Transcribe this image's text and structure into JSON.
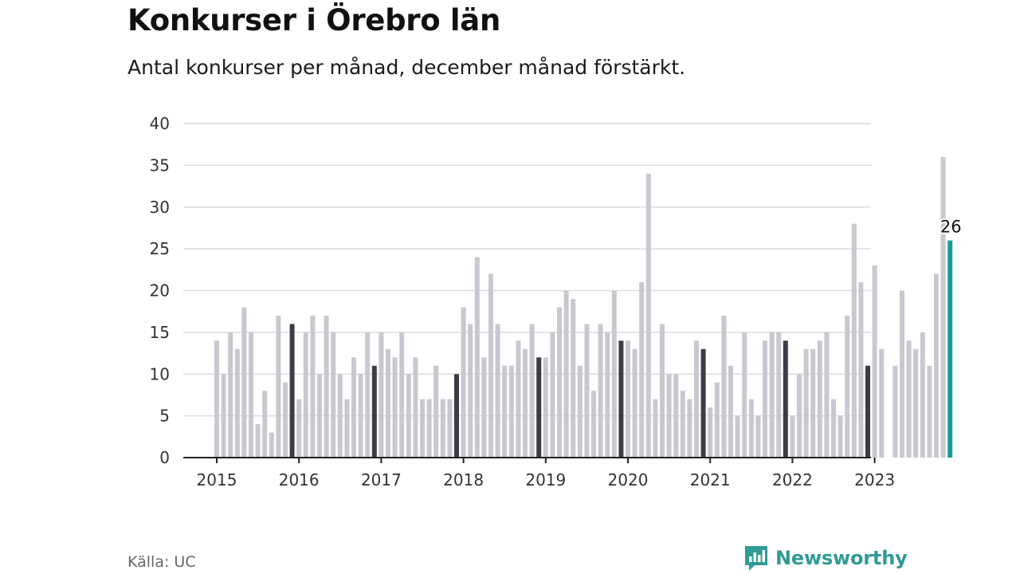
{
  "title": "Konkurser i Örebro län",
  "subtitle": "Antal konkurser per månad, december månad förstärkt.",
  "source": "Källa: UC",
  "brand": {
    "name": "Newsworthy",
    "icon": "newsworthy-logo-icon"
  },
  "colors": {
    "normal": "#c8c8d0",
    "december": "#3c3c46",
    "latest": "#1a9c94",
    "grid": "#dcdcdc",
    "axis": "#222222"
  },
  "chart_data": {
    "type": "bar",
    "title": "Konkurser i Örebro län",
    "subtitle": "Antal konkurser per månad, december månad förstärkt.",
    "xlabel": "",
    "ylabel": "",
    "ylim": [
      0,
      40
    ],
    "yticks": [
      0,
      5,
      10,
      15,
      20,
      25,
      30,
      35,
      40
    ],
    "xtick_labels": [
      "2015",
      "2016",
      "2017",
      "2018",
      "2019",
      "2020",
      "2021",
      "2022",
      "2023"
    ],
    "grid": true,
    "highlight": "december",
    "latest_label": "26",
    "start": "2015-01",
    "values": [
      14,
      10,
      15,
      13,
      18,
      15,
      4,
      8,
      3,
      17,
      9,
      16,
      7,
      15,
      17,
      10,
      17,
      15,
      10,
      7,
      12,
      10,
      15,
      11,
      15,
      13,
      12,
      15,
      10,
      12,
      7,
      7,
      11,
      7,
      7,
      10,
      18,
      16,
      24,
      12,
      22,
      16,
      11,
      11,
      14,
      13,
      16,
      12,
      12,
      15,
      18,
      20,
      19,
      11,
      16,
      8,
      16,
      15,
      20,
      14,
      14,
      13,
      21,
      34,
      7,
      16,
      10,
      10,
      8,
      7,
      14,
      13,
      6,
      9,
      17,
      11,
      5,
      15,
      7,
      5,
      14,
      15,
      15,
      14,
      5,
      10,
      13,
      13,
      14,
      15,
      7,
      5,
      17,
      28,
      21,
      11,
      23,
      13,
      0,
      11,
      20,
      14,
      13,
      15,
      11,
      22,
      36,
      26
    ]
  }
}
